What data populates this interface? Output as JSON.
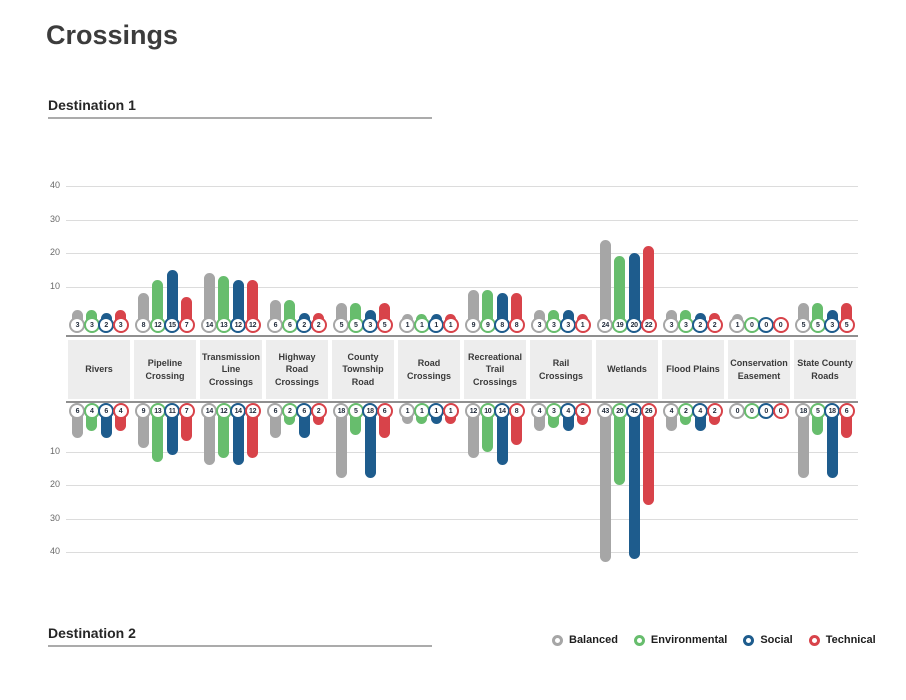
{
  "page": {
    "title": "Crossings"
  },
  "sections": {
    "destination1_label": "Destination 1",
    "destination2_label": "Destination 2"
  },
  "legend": {
    "items": [
      {
        "label": "Balanced",
        "color": "#a6a6a6"
      },
      {
        "label": "Environmental",
        "color": "#67bd6d"
      },
      {
        "label": "Social",
        "color": "#1e5c8d"
      },
      {
        "label": "Technical",
        "color": "#d8434a"
      }
    ]
  },
  "chart_data": [
    {
      "type": "bar",
      "title": "Destination 1",
      "direction": "up",
      "grid": true,
      "ylim": [
        0,
        40
      ],
      "tick_values": [
        10,
        20,
        30,
        40
      ],
      "value_labels": "shown in circles at bar base",
      "categories": [
        "Rivers",
        "Pipeline Crossing",
        "Transmission Line Crossings",
        "Highway Road Crossings",
        "County Township Road",
        "Road Crossings",
        "Recreational Trail Crossings",
        "Rail Crossings",
        "Wetlands",
        "Flood Plains",
        "Conservation Easement",
        "State County Roads"
      ],
      "series": [
        {
          "name": "Balanced",
          "color": "#a6a6a6",
          "values": [
            3,
            8,
            14,
            6,
            5,
            1,
            9,
            3,
            24,
            3,
            1,
            5
          ]
        },
        {
          "name": "Environmental",
          "color": "#67bd6d",
          "values": [
            3,
            12,
            13,
            6,
            5,
            1,
            9,
            3,
            19,
            3,
            0,
            5
          ]
        },
        {
          "name": "Social",
          "color": "#1e5c8d",
          "values": [
            2,
            15,
            12,
            2,
            3,
            1,
            8,
            3,
            20,
            2,
            0,
            3
          ]
        },
        {
          "name": "Technical",
          "color": "#d8434a",
          "values": [
            3,
            7,
            12,
            2,
            5,
            1,
            8,
            1,
            22,
            2,
            0,
            5
          ]
        }
      ]
    },
    {
      "type": "bar",
      "title": "Destination 2",
      "direction": "down",
      "grid": true,
      "ylim": [
        0,
        40
      ],
      "tick_values": [
        10,
        20,
        30,
        40
      ],
      "value_labels": "shown in circles at bar base",
      "categories": [
        "Rivers",
        "Pipeline Crossing",
        "Transmission Line Crossings",
        "Highway Road Crossings",
        "County Township Road",
        "Road Crossings",
        "Recreational Trail Crossings",
        "Rail Crossings",
        "Wetlands",
        "Flood Plains",
        "Conservation Easement",
        "State County Roads"
      ],
      "series": [
        {
          "name": "Balanced",
          "color": "#a6a6a6",
          "values": [
            6,
            9,
            14,
            6,
            18,
            1,
            12,
            4,
            43,
            4,
            0,
            18
          ]
        },
        {
          "name": "Environmental",
          "color": "#67bd6d",
          "values": [
            4,
            13,
            12,
            2,
            5,
            1,
            10,
            3,
            20,
            2,
            0,
            5
          ]
        },
        {
          "name": "Social",
          "color": "#1e5c8d",
          "values": [
            6,
            11,
            14,
            6,
            18,
            1,
            14,
            4,
            42,
            4,
            0,
            18
          ]
        },
        {
          "name": "Technical",
          "color": "#d8434a",
          "values": [
            4,
            7,
            12,
            2,
            6,
            1,
            8,
            2,
            26,
            2,
            0,
            6
          ]
        }
      ]
    }
  ]
}
